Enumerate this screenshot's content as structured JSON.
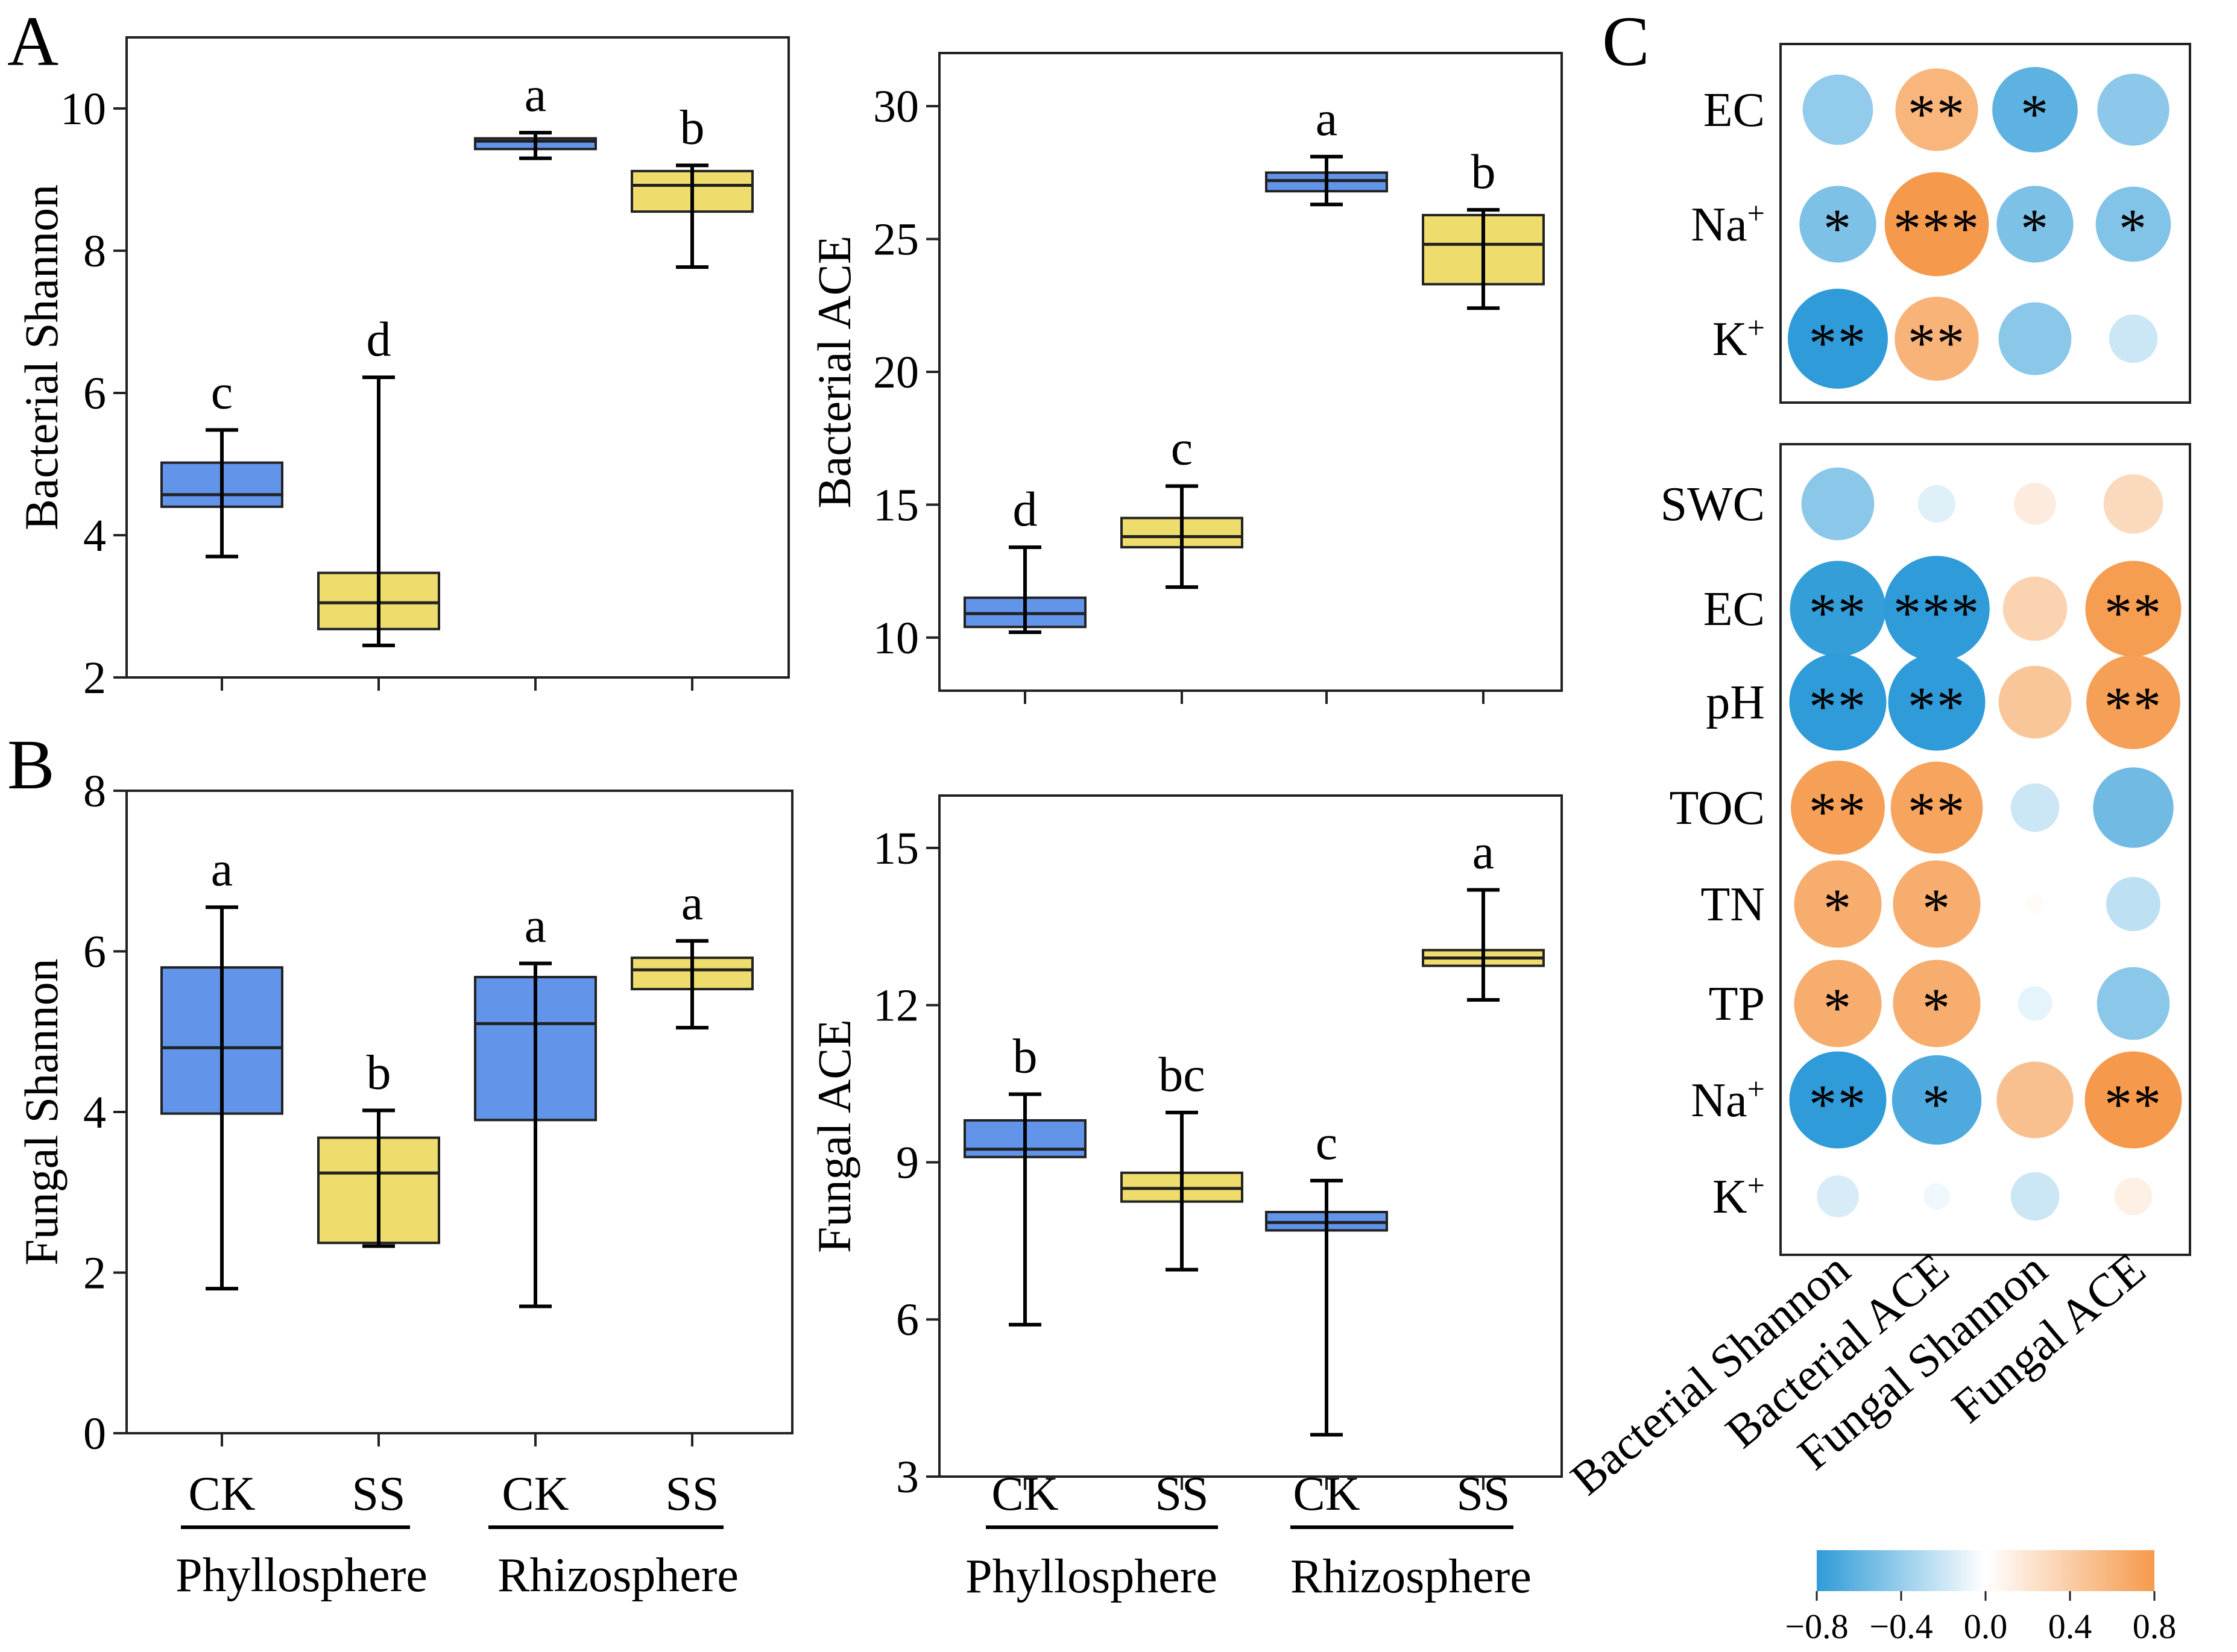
{
  "colors": {
    "ck_fill": "#6294ea",
    "ss_fill": "#eedc6d",
    "box_stroke": "#222222",
    "pos_color": "#f59a4c",
    "neg_color": "#2f9bd8"
  },
  "panel_labels": {
    "a": "A",
    "b": "B",
    "c": "C"
  },
  "groups": {
    "ck": "CK",
    "ss": "SS",
    "phyllosphere": "Phyllosphere",
    "rhizosphere": "Rhizosphere"
  },
  "chart_data": [
    {
      "type": "box",
      "panel": "A",
      "ylabel": "Bacterial Shannon",
      "ylim": [
        2,
        11
      ],
      "yticks": [
        2,
        4,
        6,
        8,
        10
      ],
      "boxes": [
        {
          "group": "CK",
          "site": "Phyllosphere",
          "min": 3.7,
          "q1": 4.4,
          "median": 4.57,
          "q3": 5.02,
          "max": 5.48,
          "letter": "c"
        },
        {
          "group": "SS",
          "site": "Phyllosphere",
          "min": 2.45,
          "q1": 2.68,
          "median": 3.05,
          "q3": 3.47,
          "max": 6.22,
          "letter": "d"
        },
        {
          "group": "CK",
          "site": "Rhizosphere",
          "min": 9.3,
          "q1": 9.43,
          "median": 9.54,
          "q3": 9.58,
          "max": 9.66,
          "letter": "a"
        },
        {
          "group": "SS",
          "site": "Rhizosphere",
          "min": 7.77,
          "q1": 8.55,
          "median": 8.92,
          "q3": 9.12,
          "max": 9.2,
          "letter": "b"
        }
      ]
    },
    {
      "type": "box",
      "panel": "A",
      "ylabel": "Bacterial ACE",
      "ylim": [
        8,
        32
      ],
      "yticks": [
        10,
        15,
        20,
        25,
        30
      ],
      "boxes": [
        {
          "group": "CK",
          "site": "Phyllosphere",
          "min": 10.2,
          "q1": 10.4,
          "median": 10.9,
          "q3": 11.5,
          "max": 13.4,
          "letter": "d"
        },
        {
          "group": "SS",
          "site": "Phyllosphere",
          "min": 11.9,
          "q1": 13.4,
          "median": 13.8,
          "q3": 14.5,
          "max": 15.7,
          "letter": "c"
        },
        {
          "group": "CK",
          "site": "Rhizosphere",
          "min": 26.3,
          "q1": 26.8,
          "median": 27.2,
          "q3": 27.5,
          "max": 28.1,
          "letter": "a"
        },
        {
          "group": "SS",
          "site": "Rhizosphere",
          "min": 22.4,
          "q1": 23.3,
          "median": 24.8,
          "q3": 25.9,
          "max": 26.1,
          "letter": "b"
        }
      ]
    },
    {
      "type": "box",
      "panel": "B",
      "ylabel": "Fungal Shannon",
      "ylim": [
        0,
        8
      ],
      "yticks": [
        0,
        2,
        4,
        6,
        8
      ],
      "boxes": [
        {
          "group": "CK",
          "site": "Phyllosphere",
          "min": 1.8,
          "q1": 3.98,
          "median": 4.8,
          "q3": 5.8,
          "max": 6.55,
          "letter": "a"
        },
        {
          "group": "SS",
          "site": "Phyllosphere",
          "min": 2.33,
          "q1": 2.37,
          "median": 3.24,
          "q3": 3.68,
          "max": 4.02,
          "letter": "b"
        },
        {
          "group": "CK",
          "site": "Rhizosphere",
          "min": 1.58,
          "q1": 3.9,
          "median": 5.1,
          "q3": 5.68,
          "max": 5.85,
          "letter": "a"
        },
        {
          "group": "SS",
          "site": "Rhizosphere",
          "min": 5.05,
          "q1": 5.53,
          "median": 5.77,
          "q3": 5.92,
          "max": 6.13,
          "letter": "a"
        }
      ]
    },
    {
      "type": "box",
      "panel": "B",
      "ylabel": "Fungal ACE",
      "ylim": [
        3,
        16
      ],
      "yticks": [
        3,
        6,
        9,
        12,
        15
      ],
      "boxes": [
        {
          "group": "CK",
          "site": "Phyllosphere",
          "min": 5.9,
          "q1": 9.1,
          "median": 9.25,
          "q3": 9.8,
          "max": 10.3,
          "letter": "b"
        },
        {
          "group": "SS",
          "site": "Phyllosphere",
          "min": 6.95,
          "q1": 8.25,
          "median": 8.5,
          "q3": 8.8,
          "max": 9.95,
          "letter": "bc"
        },
        {
          "group": "CK",
          "site": "Rhizosphere",
          "min": 3.8,
          "q1": 7.7,
          "median": 7.85,
          "q3": 8.05,
          "max": 8.65,
          "letter": "c"
        },
        {
          "group": "SS",
          "site": "Rhizosphere",
          "min": 12.1,
          "q1": 12.75,
          "median": 12.9,
          "q3": 13.05,
          "max": 14.2,
          "letter": "a"
        }
      ]
    },
    {
      "type": "heatmap",
      "panel": "C",
      "subtype": "correlation bubble matrix",
      "columns": [
        "Bacterial Shannon",
        "Bacterial ACE",
        "Fungal Shannon",
        "Fungal ACE"
      ],
      "colorbar": {
        "range": [
          -0.8,
          0.8
        ],
        "ticks": [
          "−0.8",
          "−0.4",
          "0.0",
          "0.4",
          "0.8"
        ]
      },
      "blocks": [
        {
          "name": "phyllosphere",
          "rows": [
            {
              "label": "EC",
              "sup": "",
              "values": [
                -0.42,
                0.58,
                -0.62,
                -0.44
              ],
              "sig": [
                "",
                "**",
                "*",
                ""
              ]
            },
            {
              "label": "Na",
              "sup": "+",
              "values": [
                -0.5,
                0.92,
                -0.5,
                -0.48
              ],
              "sig": [
                "*",
                "***",
                "*",
                "*"
              ]
            },
            {
              "label": "K",
              "sup": "+",
              "values": [
                -0.85,
                0.6,
                -0.45,
                -0.2
              ],
              "sig": [
                "**",
                "**",
                "",
                ""
              ]
            }
          ]
        },
        {
          "name": "rhizosphere",
          "rows": [
            {
              "label": "SWC",
              "sup": "",
              "values": [
                -0.45,
                -0.12,
                0.15,
                0.3
              ],
              "sig": [
                "",
                "",
                "",
                ""
              ]
            },
            {
              "label": "EC",
              "sup": "",
              "values": [
                -0.78,
                -0.95,
                0.35,
                0.78
              ],
              "sig": [
                "**",
                "***",
                "",
                "**"
              ]
            },
            {
              "label": "pH",
              "sup": "",
              "values": [
                -0.8,
                -0.8,
                0.45,
                0.75
              ],
              "sig": [
                "**",
                "**",
                "",
                "**"
              ]
            },
            {
              "label": "TOC",
              "sup": "",
              "values": [
                0.75,
                0.72,
                -0.2,
                -0.55
              ],
              "sig": [
                "**",
                "**",
                "",
                ""
              ]
            },
            {
              "label": "TN",
              "sup": "",
              "values": [
                0.65,
                0.65,
                0.03,
                -0.25
              ],
              "sig": [
                "*",
                "*",
                "",
                ""
              ]
            },
            {
              "label": "TP",
              "sup": "",
              "values": [
                0.65,
                0.65,
                -0.1,
                -0.45
              ],
              "sig": [
                "*",
                "*",
                "",
                ""
              ]
            },
            {
              "label": "Na",
              "sup": "+",
              "values": [
                -0.8,
                -0.68,
                0.5,
                0.8
              ],
              "sig": [
                "**",
                "*",
                "",
                "**"
              ]
            },
            {
              "label": "K",
              "sup": "+",
              "values": [
                -0.15,
                -0.06,
                -0.2,
                0.12
              ],
              "sig": [
                "",
                "",
                "",
                ""
              ]
            }
          ]
        }
      ]
    }
  ]
}
